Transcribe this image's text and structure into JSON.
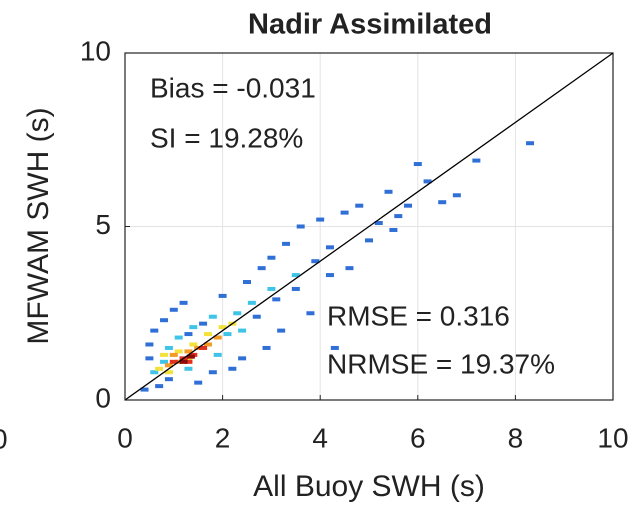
{
  "chart_data": {
    "type": "scatter",
    "title": "Nadir Assimilated",
    "x_label": "All Buoy SWH (s)",
    "y_label": "MFWAM SWH (s)",
    "annotations": [
      "Bias = -0.031",
      "SI = 19.28%",
      "RMSE = 0.316",
      "NRMSE = 19.37%"
    ],
    "xlim": [
      0,
      10
    ],
    "ylim": [
      0,
      10
    ],
    "xticks": [
      0,
      2,
      4,
      6,
      8,
      10
    ],
    "yticks": [
      0,
      5,
      10
    ],
    "grid": true,
    "reference_line": {
      "x": [
        0,
        10
      ],
      "values": [
        0,
        10
      ],
      "color": "#000000"
    },
    "series": [
      {
        "color": "#2f6fd6",
        "x": [
          0.4,
          0.5,
          0.6,
          0.5,
          0.7,
          0.8,
          1.0,
          1.2,
          1.5,
          1.8,
          2.0,
          2.2,
          2.4,
          2.5,
          2.8,
          2.9,
          3.0,
          3.2,
          3.3,
          3.5,
          3.6,
          3.8,
          3.9,
          4.0,
          4.2,
          4.3,
          4.5,
          4.6,
          4.8,
          5.0,
          5.2,
          5.4,
          5.5,
          5.8,
          6.0,
          6.2,
          6.5,
          6.8,
          7.2,
          8.3,
          2.7,
          3.1,
          1.6,
          4.2,
          5.6,
          1.3,
          0.9
        ],
        "values": [
          0.3,
          1.2,
          2.0,
          1.6,
          0.4,
          2.3,
          2.6,
          2.8,
          0.5,
          0.8,
          3.0,
          0.9,
          1.2,
          3.4,
          3.8,
          1.5,
          4.1,
          2.0,
          4.5,
          3.2,
          5.0,
          2.5,
          4.0,
          5.2,
          3.6,
          1.5,
          5.4,
          3.8,
          5.6,
          4.6,
          5.1,
          6.0,
          4.9,
          5.6,
          6.8,
          6.3,
          5.7,
          5.9,
          6.9,
          7.4,
          2.4,
          2.9,
          2.2,
          4.4,
          5.3,
          1.9,
          0.6
        ]
      },
      {
        "color": "#3fc4e8",
        "x": [
          0.6,
          0.9,
          1.1,
          1.4,
          1.8,
          2.1,
          2.3,
          2.6,
          1.9,
          1.3,
          3.0,
          2.4,
          0.8,
          3.5
        ],
        "values": [
          0.8,
          1.5,
          1.8,
          2.1,
          2.4,
          1.9,
          2.5,
          2.8,
          1.3,
          0.9,
          3.2,
          2.0,
          1.1,
          3.6
        ]
      },
      {
        "color": "#f2e23a",
        "x": [
          0.7,
          0.9,
          1.1,
          1.4,
          1.7,
          2.0,
          1.3,
          0.8,
          2.2
        ],
        "values": [
          0.9,
          0.8,
          1.4,
          1.6,
          1.9,
          2.1,
          1.2,
          1.3,
          2.2
        ]
      },
      {
        "color": "#f49a26",
        "x": [
          0.9,
          1.1,
          1.3,
          1.5,
          1.7,
          1.0,
          1.9
        ],
        "values": [
          1.0,
          1.1,
          1.4,
          1.5,
          1.6,
          1.3,
          1.8
        ]
      },
      {
        "color": "#e0301e",
        "x": [
          1.0,
          1.2,
          1.4,
          1.6,
          1.3
        ],
        "values": [
          1.1,
          1.2,
          1.3,
          1.5,
          1.1
        ]
      },
      {
        "color": "#8c0a0a",
        "x": [
          1.2,
          1.35
        ],
        "values": [
          1.1,
          1.25
        ]
      }
    ]
  },
  "cropped_text": "0"
}
